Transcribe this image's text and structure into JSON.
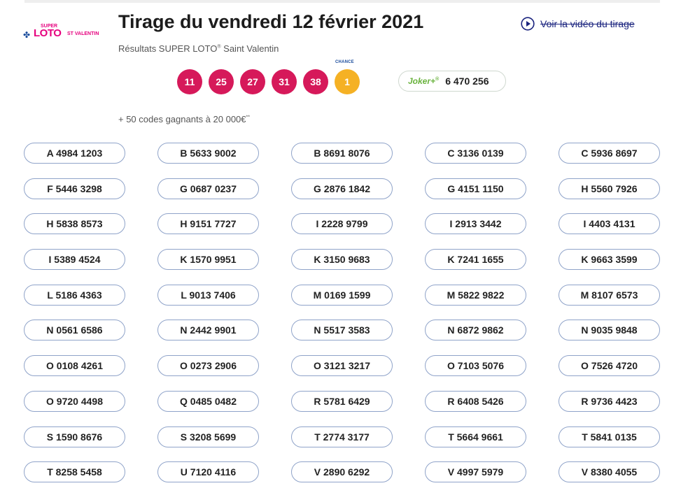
{
  "logo": {
    "super": "SUPER",
    "lotto": "LOTO",
    "sub": "ST VALENTIN"
  },
  "header": {
    "title": "Tirage du vendredi 12 février 2021",
    "subtitle": "Résultats SUPER LOTO",
    "subtitle_reg": "®",
    "subtitle_suffix": " Saint Valentin",
    "video_link": "Voir la vidéo du tirage"
  },
  "draw": {
    "balls": [
      "11",
      "25",
      "27",
      "31",
      "38"
    ],
    "chance_label": "CHANCE",
    "chance_number": "1"
  },
  "joker": {
    "label": "Joker+",
    "reg": "®",
    "number": "6 470 256"
  },
  "codes_note": {
    "text": "+ 50 codes gagnants à 20 000€",
    "sup": "**"
  },
  "codes": [
    "A 4984 1203",
    "B 5633 9002",
    "B 8691 8076",
    "C 3136 0139",
    "C 5936 8697",
    "F 5446 3298",
    "G 0687 0237",
    "G 2876 1842",
    "G 4151 1150",
    "H 5560 7926",
    "H 5838 8573",
    "H 9151 7727",
    "I 2228 9799",
    "I 2913 3442",
    "I 4403 4131",
    "I 5389 4524",
    "K 1570 9951",
    "K 3150 9683",
    "K 7241 1655",
    "K 9663 3599",
    "L 5186 4363",
    "L 9013 7406",
    "M 0169 1599",
    "M 5822 9822",
    "M 8107 6573",
    "N 0561 6586",
    "N 2442 9901",
    "N 5517 3583",
    "N 6872 9862",
    "N 9035 9848",
    "O 0108 4261",
    "O 0273 2906",
    "O 3121 3217",
    "O 7103 5076",
    "O 7526 4720",
    "O 9720 4498",
    "Q 0485 0482",
    "R 5781 6429",
    "R 6408 5426",
    "R 9736 4423",
    "S 1590 8676",
    "S 3208 5699",
    "T 2774 3177",
    "T 5664 9661",
    "T 5841 0135",
    "T 8258 5458",
    "U 7120 4116",
    "V 2890 6292",
    "V 4997 5979",
    "V 8380 4055"
  ],
  "colors": {
    "ball": "#d6195a",
    "chance_ball": "#f5b124",
    "joker_green": "#6ab33e",
    "link_blue": "#1a237e",
    "pill_border": "#8fa3c9"
  },
  "icons": {
    "video": "play-circle-icon",
    "logo_clover": "clover-icon"
  }
}
